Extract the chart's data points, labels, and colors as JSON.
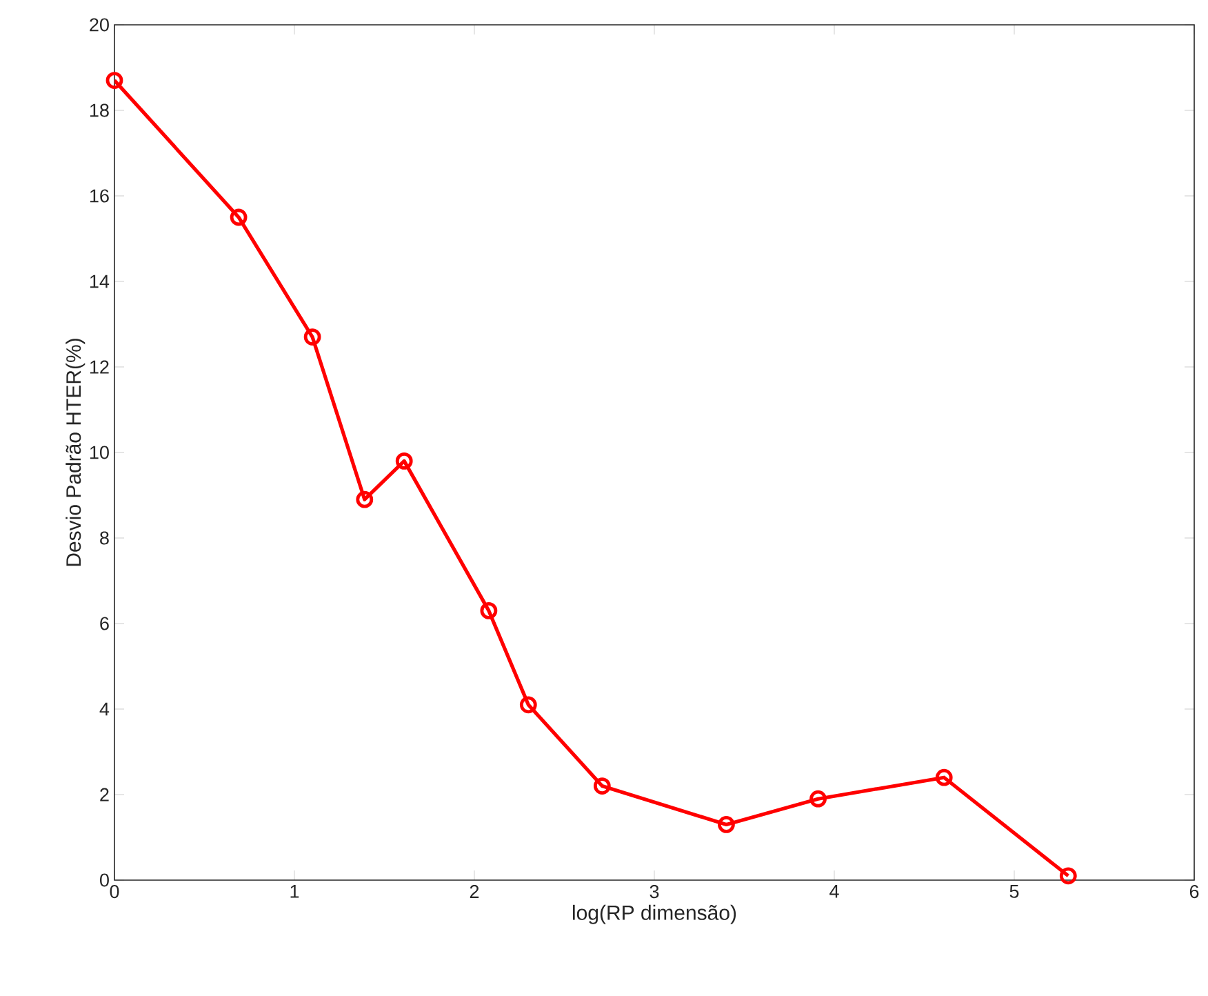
{
  "chart_data": {
    "type": "line",
    "xlabel": "log(RP dimensão)",
    "ylabel": "Desvio Padrão HTER(%)",
    "x": [
      0,
      0.69,
      1.1,
      1.39,
      1.61,
      2.08,
      2.3,
      2.71,
      3.4,
      3.91,
      4.61,
      5.3
    ],
    "series": [
      {
        "color": "#ff0000",
        "values": [
          18.7,
          15.5,
          12.7,
          8.9,
          9.8,
          6.3,
          4.1,
          2.2,
          1.3,
          1.9,
          2.4,
          0.1
        ]
      }
    ],
    "xlim": [
      0,
      6
    ],
    "ylim": [
      0,
      20
    ],
    "xticks": [
      0,
      1,
      2,
      3,
      4,
      5,
      6
    ],
    "yticks": [
      0,
      2,
      4,
      6,
      8,
      10,
      12,
      14,
      16,
      18,
      20
    ],
    "marker": "circle",
    "line_style": "solid"
  }
}
